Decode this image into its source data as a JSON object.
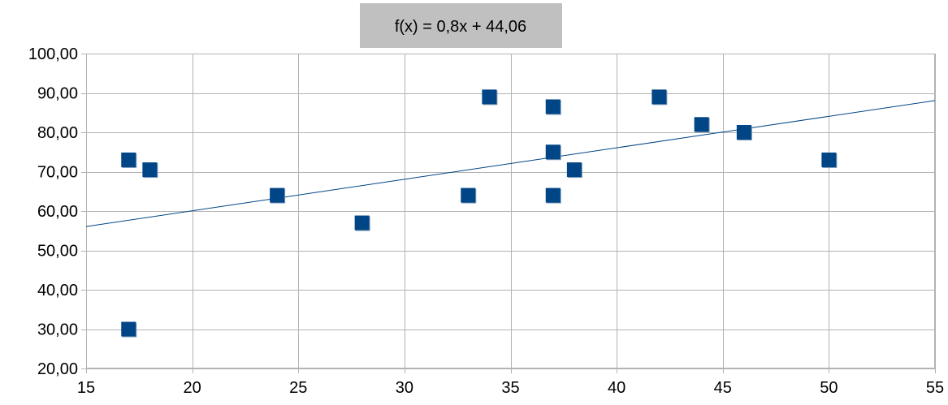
{
  "chart_data": {
    "type": "scatter",
    "title": "",
    "xlabel": "",
    "ylabel": "",
    "xlim": [
      15,
      55
    ],
    "ylim": [
      20,
      100
    ],
    "x_ticks": [
      15,
      20,
      25,
      30,
      35,
      40,
      45,
      50,
      55
    ],
    "x_tick_labels": [
      "15",
      "20",
      "25",
      "30",
      "35",
      "40",
      "45",
      "50",
      "55"
    ],
    "y_ticks": [
      20,
      30,
      40,
      50,
      60,
      70,
      80,
      90,
      100
    ],
    "y_tick_labels": [
      "20,00",
      "30,00",
      "40,00",
      "50,00",
      "60,00",
      "70,00",
      "80,00",
      "90,00",
      "100,00"
    ],
    "grid": true,
    "legend": "none",
    "series": [
      {
        "color": "#004586",
        "marker": "square",
        "points": [
          {
            "x": 17,
            "y": 73
          },
          {
            "x": 17,
            "y": 30
          },
          {
            "x": 18,
            "y": 70.5
          },
          {
            "x": 24,
            "y": 64
          },
          {
            "x": 28,
            "y": 57
          },
          {
            "x": 33,
            "y": 64
          },
          {
            "x": 34,
            "y": 89
          },
          {
            "x": 37,
            "y": 86.5
          },
          {
            "x": 37,
            "y": 75
          },
          {
            "x": 37,
            "y": 64
          },
          {
            "x": 38,
            "y": 70.5
          },
          {
            "x": 42,
            "y": 89
          },
          {
            "x": 44,
            "y": 82
          },
          {
            "x": 46,
            "y": 80
          },
          {
            "x": 50,
            "y": 73
          }
        ]
      }
    ],
    "trendline": {
      "type": "linear",
      "slope": 0.8,
      "intercept": 44.06,
      "color": "#004586",
      "equation_label": "f(x) = 0,8x + 44,06",
      "label_background": "#c0c0c0"
    }
  }
}
